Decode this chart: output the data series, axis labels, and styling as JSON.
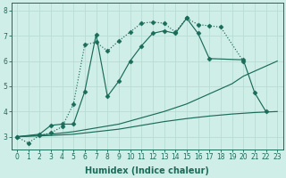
{
  "xlabel": "Humidex (Indice chaleur)",
  "xlim": [
    -0.5,
    23.5
  ],
  "ylim": [
    2.5,
    8.3
  ],
  "background_color": "#d0eee8",
  "grid_color": "#b8ddd4",
  "line_color": "#1a6b5a",
  "curves": [
    {
      "x": [
        0,
        1,
        2,
        3,
        4,
        5,
        6,
        7,
        8,
        9,
        10,
        11,
        12,
        13,
        14,
        15,
        16,
        17,
        18,
        20
      ],
      "y": [
        3.0,
        2.75,
        3.05,
        3.15,
        3.4,
        4.3,
        6.65,
        6.75,
        6.4,
        6.8,
        7.15,
        7.5,
        7.55,
        7.5,
        7.15,
        7.7,
        7.45,
        7.4,
        7.35,
        6.0
      ],
      "linestyle": "dotted",
      "marker": "D",
      "markersize": 2.5
    },
    {
      "x": [
        0,
        2,
        3,
        4,
        5,
        6,
        7,
        8,
        9,
        10,
        11,
        12,
        13,
        14,
        15,
        16,
        17,
        20,
        21,
        22
      ],
      "y": [
        3.0,
        3.1,
        3.45,
        3.5,
        3.5,
        4.8,
        7.05,
        4.6,
        5.2,
        6.0,
        6.6,
        7.1,
        7.2,
        7.1,
        7.7,
        7.1,
        6.1,
        6.05,
        4.75,
        4.0
      ],
      "linestyle": "solid",
      "marker": "D",
      "markersize": 2.5
    },
    {
      "x": [
        0,
        3,
        5,
        7,
        9,
        11,
        13,
        15,
        17,
        19,
        20,
        21,
        22,
        23
      ],
      "y": [
        3.0,
        3.1,
        3.2,
        3.35,
        3.5,
        3.75,
        4.0,
        4.3,
        4.7,
        5.1,
        5.4,
        5.6,
        5.8,
        6.0
      ],
      "linestyle": "solid",
      "marker": null,
      "markersize": 0
    },
    {
      "x": [
        0,
        3,
        5,
        7,
        9,
        11,
        13,
        15,
        17,
        19,
        20,
        21,
        22,
        23
      ],
      "y": [
        3.0,
        3.05,
        3.1,
        3.2,
        3.3,
        3.45,
        3.6,
        3.72,
        3.82,
        3.9,
        3.93,
        3.96,
        3.98,
        4.0
      ],
      "linestyle": "solid",
      "marker": null,
      "markersize": 0
    }
  ],
  "xticks": [
    0,
    1,
    2,
    3,
    4,
    5,
    6,
    7,
    8,
    9,
    10,
    11,
    12,
    13,
    14,
    15,
    16,
    17,
    18,
    19,
    20,
    21,
    22,
    23
  ],
  "yticks": [
    3,
    4,
    5,
    6,
    7,
    8
  ],
  "tick_fontsize": 5.5,
  "xlabel_fontsize": 7
}
